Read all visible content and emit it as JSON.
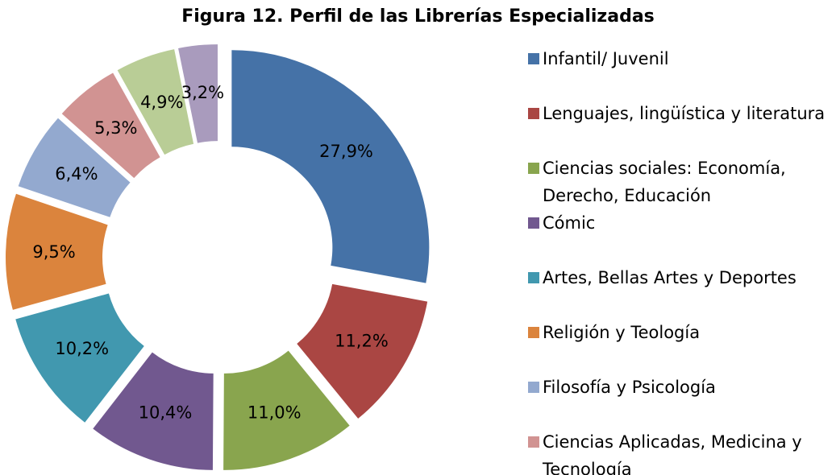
{
  "chart_data": {
    "type": "donut",
    "title": "Figura 12. Perfil de las Librerías Especializadas",
    "categories": [
      "Infantil/ Juvenil",
      "Lenguajes, lingüística y literatura",
      "Ciencias sociales: Economía, Derecho, Educación",
      "Cómic",
      "Artes, Bellas Artes y Deportes",
      "Religión y Teología",
      "Filosofía y Psicología",
      "Ciencias Aplicadas, Medicina y Tecnología",
      null,
      null
    ],
    "values": [
      27.9,
      11.2,
      11.0,
      10.4,
      10.2,
      9.5,
      6.4,
      5.3,
      4.9,
      3.2
    ],
    "value_labels": [
      "27,9%",
      "11,2%",
      "11,0%",
      "10,4%",
      "10,2%",
      "9,5%",
      "6,4%",
      "5,3%",
      "4,9%",
      "3,2%"
    ],
    "colors": [
      "#4572a7",
      "#aa4643",
      "#89a54e",
      "#71588f",
      "#4198af",
      "#db843d",
      "#93a9cf",
      "#d19392",
      "#b9cd96",
      "#a99bbd"
    ],
    "legend": "right"
  }
}
